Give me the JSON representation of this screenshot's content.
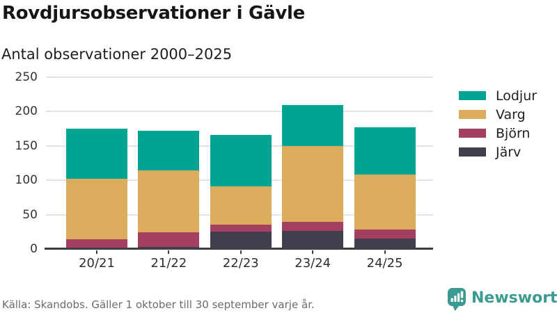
{
  "header": {
    "title": "Rovdjursobservationer i Gävle",
    "subtitle": "Antal observationer 2000–2025"
  },
  "chart_data": {
    "type": "bar",
    "stacked": true,
    "title": "Rovdjursobservationer i Gävle",
    "subtitle": "Antal observationer 2000–2025",
    "categories": [
      "20/21",
      "21/22",
      "22/23",
      "23/24",
      "24/25"
    ],
    "series": [
      {
        "name": "Järv",
        "color": "#413e4d",
        "values": [
          2,
          3,
          25,
          26,
          15
        ]
      },
      {
        "name": "Björn",
        "color": "#a43f5f",
        "values": [
          12,
          21,
          10,
          13,
          13
        ]
      },
      {
        "name": "Varg",
        "color": "#dbac5c",
        "values": [
          88,
          90,
          56,
          111,
          80
        ]
      },
      {
        "name": "Lodjur",
        "color": "#00a394",
        "values": [
          73,
          58,
          75,
          60,
          69
        ]
      }
    ],
    "totals": [
      175,
      172,
      166,
      210,
      177
    ],
    "ylim": [
      0,
      250
    ],
    "y_ticks": [
      0,
      50,
      100,
      150,
      200,
      250
    ],
    "grid": "horizontal",
    "legend": {
      "position": "right",
      "items": [
        {
          "label": "Lodjur",
          "color": "#00a394"
        },
        {
          "label": "Varg",
          "color": "#dbac5c"
        },
        {
          "label": "Björn",
          "color": "#a43f5f"
        },
        {
          "label": "Järv",
          "color": "#413e4d"
        }
      ]
    }
  },
  "footer": {
    "source": "Källa: Skandobs. Gäller 1 oktober till 30 september varje år.",
    "brand": "Newsworthy",
    "brand_color": "#3b9b91"
  }
}
